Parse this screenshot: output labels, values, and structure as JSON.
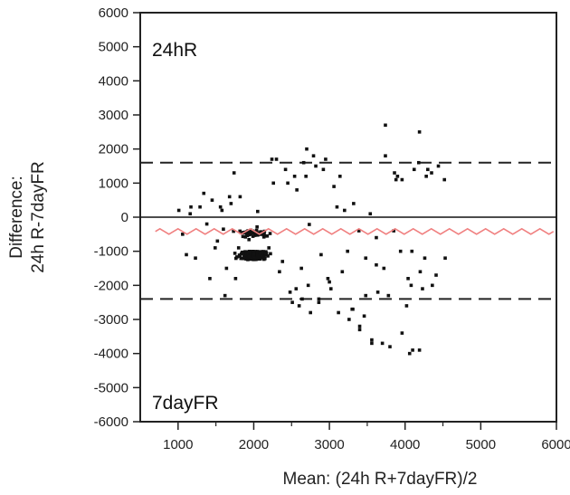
{
  "chart_data": {
    "type": "scatter",
    "title": "",
    "xlabel": "Mean: (24h R+7dayFR)/2",
    "ylabel_line1": "Difference:",
    "ylabel_line2": "24h R-7dayFR",
    "xlim": [
      500,
      6000
    ],
    "ylim": [
      -6000,
      6000
    ],
    "x_ticks": [
      1000,
      2000,
      3000,
      4000,
      5000,
      6000
    ],
    "y_ticks": [
      6000,
      5000,
      4000,
      3000,
      2000,
      1000,
      0,
      -1000,
      -2000,
      -3000,
      -4000,
      -5000,
      -6000
    ],
    "annotations": {
      "top": "24hR",
      "bottom": "7dayFR"
    },
    "reference_lines": {
      "zero": 0,
      "mean_difference": -420,
      "upper_limit": 1600,
      "lower_limit": -2400,
      "mean_line_x_range": [
        700,
        5850
      ]
    },
    "grid": false,
    "legend": "none",
    "colors": {
      "points": "#111111",
      "mean_line": "#f08080",
      "reference": "#222222"
    },
    "points": {
      "x": [
        2734,
        1944,
        2019,
        1873,
        1765,
        1733,
        2052,
        2044,
        1599,
        2131,
        1961,
        1937,
        1876,
        1913,
        2178,
        1962,
        2134,
        2030,
        2096,
        2123,
        2095,
        1931,
        1890,
        2044,
        1913,
        2136,
        2010,
        1933,
        2037,
        2187,
        2158,
        1964,
        1920,
        2221,
        1922,
        1989,
        2138,
        2014,
        2037,
        1904,
        1931,
        2052,
        1983,
        1945,
        2023,
        2003,
        1985,
        1917,
        1990,
        1950,
        1874,
        1962,
        1965,
        1943,
        1906,
        2169,
        1919,
        1961,
        2092,
        2216,
        2061,
        1967,
        2138,
        2005,
        1880,
        1971,
        1857,
        2109,
        2039,
        1832,
        2000,
        2087,
        2057,
        2121,
        2153,
        1950,
        1950,
        2047,
        1818,
        2030,
        1916,
        1974,
        2006,
        1778,
        1888,
        1955,
        1751,
        1965,
        1973,
        2142,
        1888,
        1975,
        2123,
        1924,
        2015,
        1948,
        1885,
        1946,
        2090,
        1927,
        2101,
        2059,
        1958,
        1911,
        1988,
        2042,
        1979,
        2041,
        2081,
        1978,
        1874,
        1810,
        2089,
        2029,
        1925,
        1948,
        1919,
        2138,
        2031,
        1921,
        2162,
        1982,
        2049,
        1943,
        1956,
        1904,
        2092,
        2032,
        1961,
        2100,
        1982,
        1817,
        1947,
        1872,
        1906,
        1886,
        1974,
        2037,
        1991,
        2018,
        1886,
        2059,
        1957,
        2050,
        2081,
        2004,
        2076,
        1899,
        2031,
        1948,
        2027,
        1831,
        1912,
        1877,
        2161,
        2148,
        2059,
        2003,
        2077,
        1845,
        1986,
        1994,
        1902,
        2018,
        1992,
        2027,
        1972,
        2013,
        2105,
        1991,
        1994,
        2080,
        2074,
        2104,
        2046,
        1986,
        1957,
        1960,
        1853,
        1877,
        2063,
        2049,
        2130,
        1920,
        1979,
        2023,
        1836,
        1953,
        2020,
        2037,
        2101,
        1987,
        2043,
        2003,
        1915,
        2056,
        1916,
        2023,
        1993,
        1894,
        2015,
        2147,
        1956,
        2080,
        2071,
        1961,
        2021,
        2001,
        1950,
        2103,
        1968,
        1854,
        1942,
        2074,
        2028,
        2109,
        2131,
        1977,
        1958,
        2058,
        1964,
        1923,
        2024,
        2058,
        2085,
        2056,
        2059,
        1994,
        1952,
        1928,
        1935,
        2005,
        2024,
        1966,
        2136,
        2011,
        2051,
        1990,
        1901,
        1942,
        2070,
        1902,
        2129,
        2052,
        2107,
        2012,
        2078,
        2018,
        2010,
        2005,
        2069,
        1861,
        1984,
        1902,
        2070,
        2126,
        2099,
        2076,
        2057,
        1957,
        2058,
        1928,
        1993,
        2039,
        1990,
        2051,
        1992,
        2003,
        1937,
        2101,
        2070,
        1974,
        2072,
        1966,
        1900,
        2048,
        2048,
        1988,
        1926,
        2044,
        1982,
        2009,
        2025,
        1999,
        2062,
        2040,
        2095,
        2075,
        1908,
        1957,
        2035,
        2058,
        2014,
        1922,
        2115,
        1987,
        2052,
        2049,
        2030,
        1890,
        2011,
        2040,
        1961,
        2084,
        2053,
        1988,
        1987,
        2078,
        1931,
        2105,
        1998,
        2040,
        1946,
        1966,
        2025,
        2106,
        2097,
        1969,
        2079,
        2079,
        1989,
        2058,
        1990,
        2039,
        2047,
        1934,
        1929,
        2021,
        2009,
        2046,
        2083,
        1974,
        1995,
        1982,
        2074,
        1987,
        2034,
        2006,
        1985,
        1952,
        1981,
        2106,
        1971,
        1998,
        2051,
        2013,
        1964,
        1943,
        2089,
        1976,
        1920,
        2001,
        1997,
        2038,
        2000,
        2036,
        2005,
        2017,
        1929,
        2000,
        2030,
        1981,
        2032,
        2017,
        2022,
        2040,
        1933,
        2013,
        2034,
        2027,
        2026,
        2023,
        2011,
        1987,
        2023,
        2004,
        2053,
        1994,
        2055,
        1982,
        2005,
        2019,
        2044,
        2030,
        1976,
        2030,
        2018,
        2004,
        2033,
        2011,
        1998,
        2039,
        2034,
        1993,
        2030,
        2014,
        2027,
        2016,
        2010,
        2044,
        2000,
        2005,
        2010,
        1993,
        2021,
        2000,
        1998,
        2023,
        2021,
        2009,
        2005,
        1993,
        2008,
        2005,
        2012,
        2007,
        1999,
        2010,
        2000,
        2010,
        1997,
        2002,
        2003,
        2011,
        2004,
        1998,
        2005,
        2003,
        2004,
        2005,
        2001,
        2004,
        2005,
        1999,
        2003,
        2002,
        2003,
        2003,
        2001,
        2002,
        1160,
        1290,
        1380,
        1450,
        1520,
        1580,
        1640,
        1700,
        1760,
        1820,
        2260,
        2340,
        2420,
        2480,
        2540,
        2600,
        2660,
        2720,
        2790,
        2860,
        2920,
        2980,
        3060,
        3120,
        3200,
        3260,
        3320,
        3400,
        3480,
        3560,
        3640,
        3720,
        3800,
        3880,
        3960,
        4040,
        4120,
        4200,
        4280,
        4360,
        4440,
        4520,
        1230,
        1340,
        1420,
        1490,
        1560,
        1620,
        1680,
        1740,
        1800,
        2300,
        2380,
        2450,
        2510,
        2570,
        2630,
        2690,
        2750,
        2820,
        2890,
        2950,
        3020,
        3100,
        3170,
        3240,
        3310,
        3390,
        3460,
        3540,
        3620,
        3700,
        3780,
        3860,
        3940,
        4020,
        4100,
        4180,
        4260,
        4350,
        1010,
        1060,
        1110,
        1170,
        2240,
        2200,
        2560,
        2640,
        2700,
        2860,
        3000,
        3140,
        3300,
        3480,
        3620,
        3740,
        3850,
        3960,
        4080,
        4190,
        4300,
        4410,
        4530,
        3400,
        3560,
        4060,
        4190,
        4230,
        4090,
        3900,
        3740
      ],
      "y": [
        -214,
        -1066,
        -1230,
        -456,
        -1208,
        -413,
        168,
        -1154,
        -351,
        -519,
        -382,
        -658,
        -446,
        -1098,
        -552,
        -408,
        -580,
        -426,
        -1080,
        -441,
        -497,
        -1206,
        -580,
        -286,
        -1073,
        -1235,
        -1106,
        -411,
        -387,
        -1138,
        -552,
        -1031,
        -495,
        -1072,
        -1244,
        -1004,
        -476,
        -533,
        -524,
        -448,
        -461,
        -525,
        -408,
        -1003,
        -1234,
        -1242,
        -409,
        -539,
        -560,
        -495,
        -446,
        -476,
        -1066,
        -512,
        -428,
        -1057,
        -1143,
        -466,
        -429,
        -479,
        -476,
        -1154,
        -535,
        -1130,
        -1081,
        -420,
        -565,
        -1179,
        -422,
        -452,
        -1013,
        -504,
        -503,
        -1142,
        -1049,
        -406,
        -1056,
        -1168,
        -409,
        -1233,
        -517,
        -1067,
        -459,
        -1166,
        -1190,
        -1072,
        -1059,
        -1201,
        -1158,
        -414,
        -441,
        -1028,
        -491,
        -403,
        -1145,
        -1203,
        -1182,
        -1148,
        -455,
        -402,
        -1122,
        -497,
        -441,
        -1217,
        -1100,
        -1196,
        -463,
        -428,
        -467,
        -1088,
        -1141,
        -1113,
        -474,
        -1238,
        -420,
        -1117,
        -1143,
        -1119,
        -1211,
        -430,
        -1110,
        -1120,
        -478,
        -1109,
        -1226,
        -1023,
        -485,
        -1016,
        -1037,
        -1075,
        -1087,
        -1145,
        -1037,
        -447,
        -496,
        -1013,
        -1109,
        -1224,
        -1235,
        -459,
        -1128,
        -1214,
        -1233,
        -1009,
        -1120,
        -1166,
        -1031,
        -1226,
        -1194,
        -1033,
        -1091,
        -1210,
        -1055,
        -1166,
        -1014,
        -1214,
        -1167,
        -1131,
        -1046,
        -1036,
        -1097,
        -1028,
        -1088,
        -1168,
        -1231,
        -1133,
        -1026,
        -1113,
        -1111,
        -1163,
        -1024,
        -1225,
        -1141,
        -1115,
        -1093,
        -1094,
        -1055,
        -1134,
        -1211,
        -1207,
        -1171,
        -1046,
        -1208,
        -1104,
        -1109,
        -1207,
        -1079,
        -1017,
        -1209,
        -1152,
        -1173,
        -1106,
        -1083,
        -1152,
        -1019,
        -1142,
        -1079,
        -1071,
        -1062,
        -1206,
        -1032,
        -1063,
        -1185,
        -1209,
        -1105,
        -1047,
        -1200,
        -1097,
        -1169,
        -1155,
        -1074,
        -1028,
        -1106,
        -1152,
        -1132,
        -1033,
        -1013,
        -1138,
        -1150,
        -1035,
        -1107,
        -1222,
        -1008,
        -1209,
        -1081,
        -1062,
        -1114,
        -1145,
        -1011,
        -1174,
        -1013,
        -1017,
        -1034,
        -1187,
        -1197,
        -1188,
        -1205,
        -1027,
        -1146,
        -1183,
        -1091,
        -1026,
        -1208,
        -1100,
        -1068,
        -1071,
        -1122,
        -1105,
        -1211,
        -1056,
        -1225,
        -1209,
        -1056,
        -1117,
        -1101,
        -1010,
        -1130,
        -1033,
        -1138,
        -1119,
        -1097,
        -1213,
        -1047,
        -1016,
        -1161,
        -1218,
        -1126,
        -1170,
        -1155,
        -1111,
        -1071,
        -1218,
        -1016,
        -1074,
        -1104,
        -1144,
        -1067,
        -1030,
        -1094,
        -1160,
        -1150,
        -1221,
        -1099,
        -1063,
        -1037,
        -1162,
        -1022,
        -1077,
        -1182,
        -1190,
        -1082,
        -1086,
        -1125,
        -1054,
        -1167,
        -1042,
        -1035,
        -1099,
        -1121,
        -1149,
        -1195,
        -1030,
        -1154,
        -1223,
        -1111,
        -1066,
        -1198,
        -1190,
        -1068,
        -1071,
        -1208,
        -1046,
        -1212,
        -1218,
        -1185,
        -1056,
        -1144,
        -1205,
        -1152,
        -1174,
        -1062,
        -1142,
        -1133,
        -1045,
        -1014,
        -1022,
        -1106,
        -1017,
        -1054,
        -1128,
        -1016,
        -1222,
        -1158,
        -1214,
        -1196,
        -1161,
        -1190,
        -1061,
        -1040,
        -1149,
        -1093,
        -1011,
        -1054,
        -1168,
        -1158,
        -1079,
        -1047,
        -1031,
        -1049,
        -1156,
        -1181,
        -1107,
        -1133,
        -1067,
        -1227,
        -1187,
        -1066,
        -1222,
        -1195,
        -1113,
        -1222,
        -1146,
        -1049,
        -1052,
        -1143,
        -1201,
        -1173,
        -1109,
        -1071,
        -1223,
        -1112,
        -1198,
        -1149,
        -1181,
        -1221,
        -1032,
        -1154,
        -1162,
        -1201,
        -1047,
        -1073,
        -1061,
        -1028,
        -1191,
        -1203,
        -1104,
        -1219,
        -1077,
        -1149,
        -1092,
        -1110,
        -1193,
        -1225,
        -1025,
        -1228,
        -1114,
        -1185,
        -1125,
        -1143,
        -1198,
        -1158,
        -1110,
        -1145,
        -1088,
        -1045,
        -1182,
        -1095,
        -1167,
        -1112,
        -1069,
        -1225,
        -1153,
        -1051,
        -1034,
        -1083,
        -1112,
        -1188,
        -1106,
        -1167,
        -1227,
        -1201,
        -1152,
        -1092,
        -1221,
        -1047,
        -1077,
        -1028,
        -1093,
        -1072,
        -1122,
        -1105,
        -1014,
        -1104,
        -1132,
        -1096,
        -1175,
        -1112,
        -1164,
        -1098,
        -1091,
        100,
        300,
        -200,
        500,
        -700,
        200,
        -1500,
        400,
        -1800,
        600,
        1000,
        -1600,
        1400,
        -2200,
        1200,
        -2600,
        1600,
        -2000,
        1800,
        -2400,
        1400,
        -1800,
        900,
        -2800,
        200,
        -3000,
        400,
        -3200,
        -1200,
        -3600,
        -2200,
        -1500,
        -3800,
        1100,
        -3400,
        -1800,
        1400,
        -1600,
        1200,
        -2000,
        1500,
        1100,
        -1200,
        700,
        -1800,
        -900,
        300,
        -2300,
        600,
        1300,
        -900,
        1700,
        -1300,
        1000,
        -2500,
        800,
        -1500,
        1200,
        -2800,
        1500,
        -1100,
        1700,
        -2100,
        300,
        -1600,
        -1000,
        -2700,
        -400,
        -2900,
        100,
        -1400,
        -3700,
        -2300,
        1300,
        -1000,
        -2600,
        -3900,
        1600,
        -1200,
        1300,
        200,
        -500,
        -1100,
        300,
        1700,
        -900,
        -2100,
        -2400,
        2000,
        -2500,
        -1900,
        1200,
        -2700,
        -2300,
        -600,
        1800,
        -400,
        1100,
        -2000,
        2500,
        1400,
        -1700,
        -1200,
        -3300,
        -3700,
        -4000,
        -3900,
        -2100,
        -1000,
        1200,
        2700
      ]
    }
  }
}
